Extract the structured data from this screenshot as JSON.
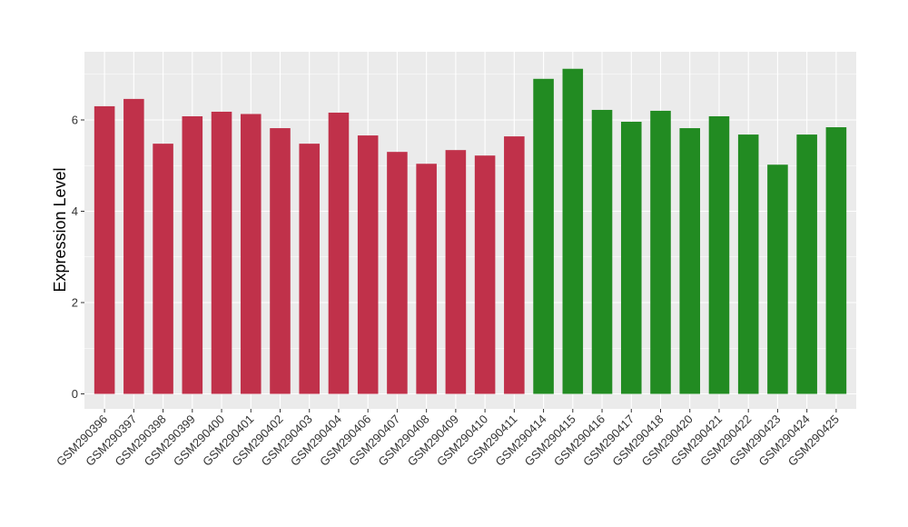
{
  "chart_data": {
    "type": "bar",
    "title": "",
    "xlabel": "",
    "ylabel": "Expression Level",
    "ylim": [
      0,
      7.5
    ],
    "yticks": [
      0,
      2,
      4,
      6
    ],
    "grid": true,
    "categories": [
      "GSM290396",
      "GSM290397",
      "GSM290398",
      "GSM290399",
      "GSM290400",
      "GSM290401",
      "GSM290402",
      "GSM290403",
      "GSM290404",
      "GSM290406",
      "GSM290407",
      "GSM290408",
      "GSM290409",
      "GSM290410",
      "GSM290411",
      "GSM290414",
      "GSM290415",
      "GSM290416",
      "GSM290417",
      "GSM290418",
      "GSM290420",
      "GSM290421",
      "GSM290422",
      "GSM290423",
      "GSM290424",
      "GSM290425"
    ],
    "values": [
      6.3,
      6.46,
      5.48,
      6.08,
      6.18,
      6.13,
      5.82,
      5.48,
      6.16,
      5.66,
      5.3,
      5.04,
      5.34,
      5.22,
      5.64,
      6.9,
      7.12,
      6.22,
      5.96,
      6.2,
      5.82,
      6.08,
      5.68,
      5.02,
      5.68,
      5.84
    ],
    "groups": [
      "red",
      "red",
      "red",
      "red",
      "red",
      "red",
      "red",
      "red",
      "red",
      "red",
      "red",
      "red",
      "red",
      "red",
      "red",
      "green",
      "green",
      "green",
      "green",
      "green",
      "green",
      "green",
      "green",
      "green",
      "green",
      "green"
    ],
    "colors": {
      "red": "#C0314A",
      "green": "#228B22",
      "panel": "#EBEBEB",
      "grid": "#FFFFFF"
    }
  }
}
